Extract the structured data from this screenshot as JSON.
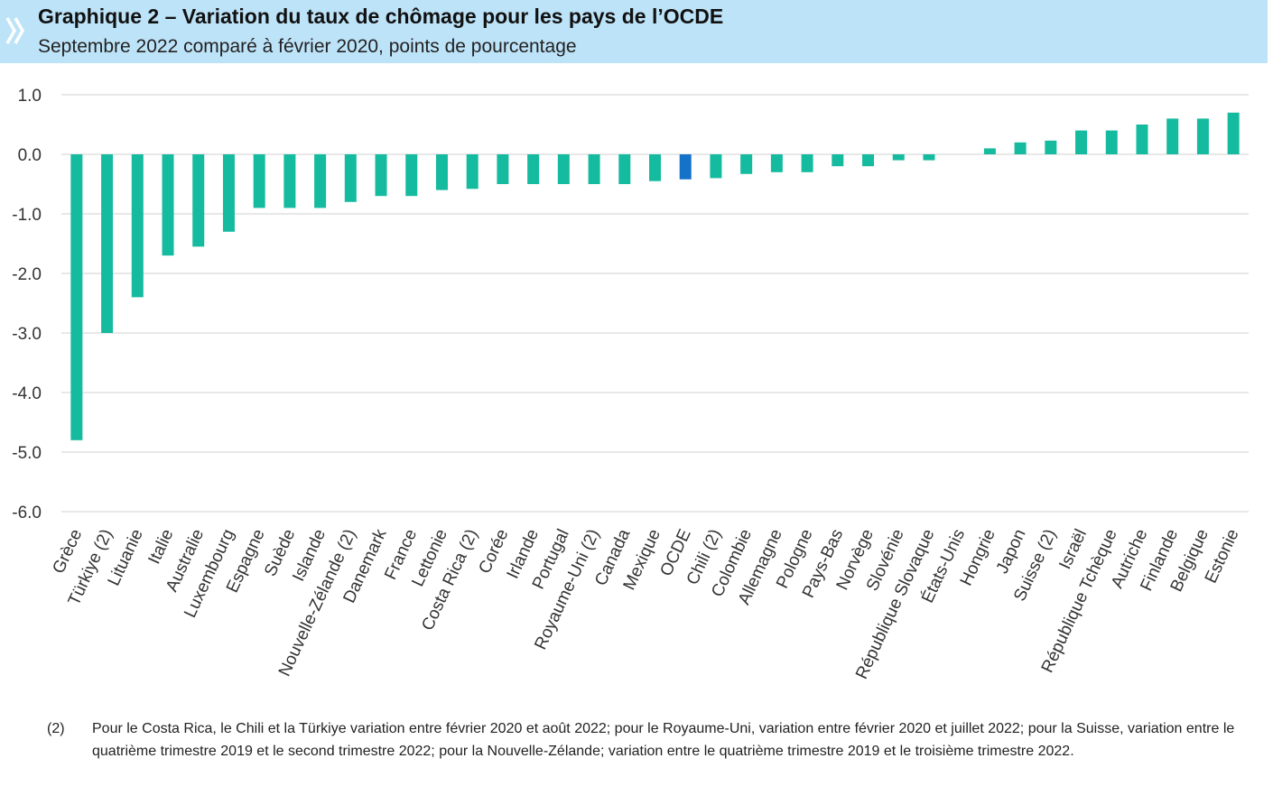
{
  "header": {
    "title": "Graphique 2 – Variation du taux de chômage pour les pays de l’OCDE",
    "subtitle": "Septembre 2022 comparé à février 2020, points de pourcentage",
    "logo_icon": "oecd-chevrons-icon"
  },
  "colors": {
    "header_bg": "#bde3f8",
    "bar": "#14bb9f",
    "highlight_bar": "#1572c9",
    "grid": "#d9d9d9"
  },
  "chart_data": {
    "type": "bar",
    "title": "Graphique 2 – Variation du taux de chômage pour les pays de l’OCDE",
    "subtitle": "Septembre 2022 comparé à février 2020, points de pourcentage",
    "xlabel": "",
    "ylabel": "",
    "ylim": [
      -6.0,
      1.0
    ],
    "yticks": [
      1.0,
      0.0,
      -1.0,
      -2.0,
      -3.0,
      -4.0,
      -5.0,
      -6.0
    ],
    "ytick_labels": [
      "1.0",
      "0.0",
      "-1.0",
      "-2.0",
      "-3.0",
      "-4.0",
      "-5.0",
      "-6.0"
    ],
    "grid": true,
    "legend": "none",
    "highlight": "OCDE",
    "categories": [
      "Grèce",
      "Türkiye (2)",
      "Lituanie",
      "Italie",
      "Australie",
      "Luxembourg",
      "Espagne",
      "Suède",
      "Islande",
      "Nouvelle-Zélande (2)",
      "Danemark",
      "France",
      "Lettonie",
      "Costa Rica (2)",
      "Corée",
      "Irlande",
      "Portugal",
      "Royaume-Uni (2)",
      "Canada",
      "Mexique",
      "OCDE",
      "Chili (2)",
      "Colombie",
      "Allemagne",
      "Pologne",
      "Pays-Bas",
      "Norvège",
      "Slovénie",
      "République Slovaque",
      "États-Unis",
      "Hongrie",
      "Japon",
      "Suisse (2)",
      "Israël",
      "République Tchèque",
      "Autriche",
      "Finlande",
      "Belgique",
      "Estonie"
    ],
    "values": [
      -4.8,
      -3.0,
      -2.4,
      -1.7,
      -1.55,
      -1.3,
      -0.9,
      -0.9,
      -0.9,
      -0.8,
      -0.7,
      -0.7,
      -0.6,
      -0.58,
      -0.5,
      -0.5,
      -0.5,
      -0.5,
      -0.5,
      -0.45,
      -0.42,
      -0.4,
      -0.33,
      -0.3,
      -0.3,
      -0.2,
      -0.2,
      -0.1,
      -0.1,
      0.0,
      0.1,
      0.2,
      0.23,
      0.4,
      0.4,
      0.5,
      0.6,
      0.6,
      0.7
    ]
  },
  "footnote": {
    "number": "(2)",
    "text": "Pour le Costa Rica, le Chili et la Türkiye variation entre février 2020 et août 2022; pour le Royaume-Uni, variation entre février 2020 et juillet 2022; pour la Suisse, variation entre le quatrième trimestre 2019 et le second trimestre 2022; pour la Nouvelle-Zélande; variation entre le quatrième trimestre 2019 et le troisième trimestre 2022."
  }
}
